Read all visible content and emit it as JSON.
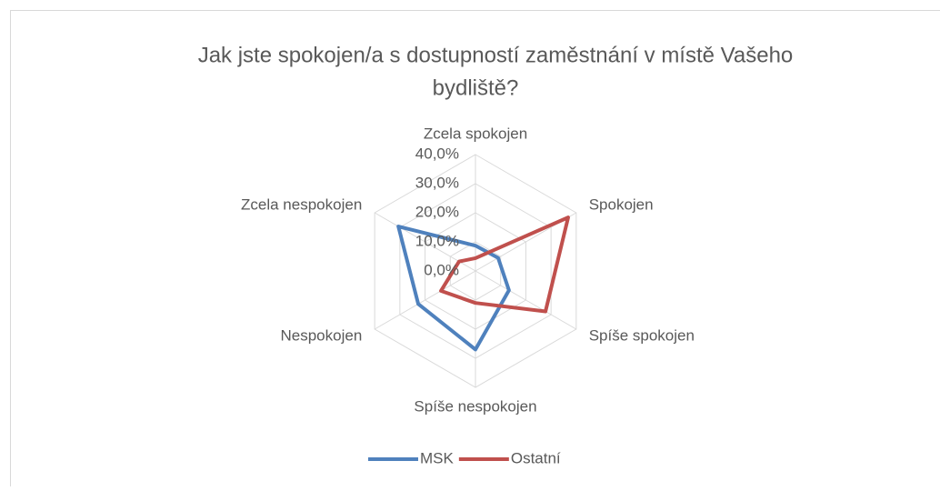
{
  "chart_data": {
    "type": "radar",
    "title": "Jak jste spokojen/a s dostupností zaměstnání v místě Vašeho bydliště?",
    "title_lines": [
      "Jak jste spokojen/a s dostupností zaměstnání v místě Vašeho",
      "bydliště?"
    ],
    "categories": [
      "Zcela spokojen",
      "Spokojen",
      "Spíše spokojen",
      "Spíše nespokojen",
      "Nespokojen",
      "Zcela nespokojen"
    ],
    "series": [
      {
        "name": "MSK",
        "color": "#4f81bd",
        "values": [
          8.7,
          9,
          13.3,
          27,
          22.7,
          30.6
        ]
      },
      {
        "name": "Ostatní",
        "color": "#c0504d",
        "values": [
          4.4,
          36.8,
          27.8,
          11,
          13.7,
          6.5
        ]
      }
    ],
    "ylim": [
      0,
      40
    ],
    "yticks": [
      {
        "value": 0,
        "label": "0,0%"
      },
      {
        "value": 10,
        "label": "10,0%"
      },
      {
        "value": 20,
        "label": "20,0%"
      },
      {
        "value": 30,
        "label": "30,0%"
      },
      {
        "value": 40,
        "label": "40,0%"
      }
    ],
    "grid": true,
    "legend": "bottom"
  }
}
